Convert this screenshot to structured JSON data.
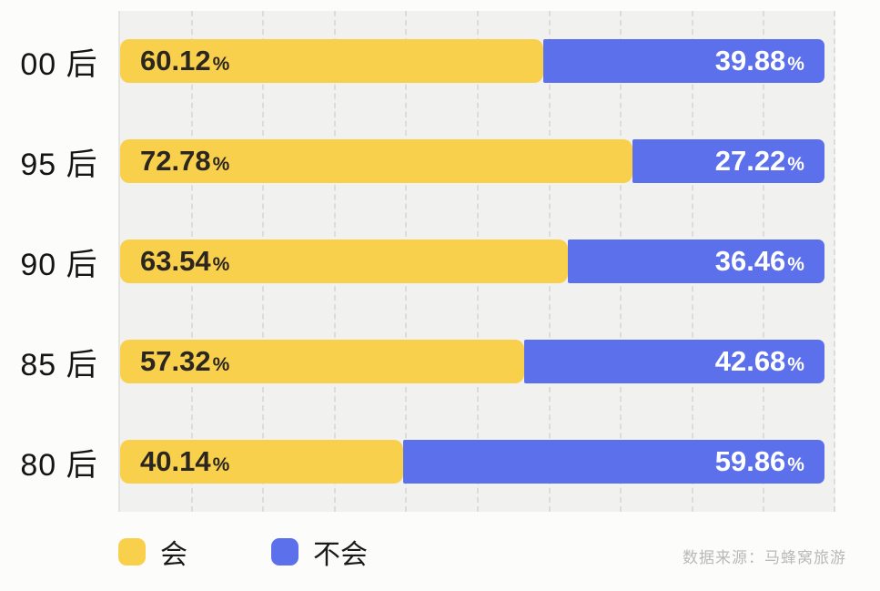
{
  "chart_data": {
    "type": "bar",
    "orientation": "horizontal",
    "stacked": true,
    "title": "",
    "xlabel": "",
    "ylabel": "",
    "xlim": [
      0,
      100
    ],
    "grid": "vertical dashed lines every 10%",
    "unit": "%",
    "percent_sign": "%",
    "categories": [
      "00 后",
      "95 后",
      "90 后",
      "85 后",
      "80 后"
    ],
    "series": [
      {
        "name": "会",
        "color": "#F9D04C",
        "values": [
          60.12,
          72.78,
          63.54,
          57.32,
          40.14
        ]
      },
      {
        "name": "不会",
        "color": "#5B70EA",
        "values": [
          39.88,
          27.22,
          36.46,
          42.68,
          59.86
        ]
      }
    ],
    "rows": [
      {
        "label": "00 后",
        "yes": "60.12",
        "no": "39.88"
      },
      {
        "label": "95 后",
        "yes": "72.78",
        "no": "27.22"
      },
      {
        "label": "90 后",
        "yes": "63.54",
        "no": "36.46"
      },
      {
        "label": "85 后",
        "yes": "57.32",
        "no": "42.68"
      },
      {
        "label": "80 后",
        "yes": "40.14",
        "no": "59.86"
      }
    ],
    "legend": [
      {
        "label": "会",
        "color": "#F9D04C"
      },
      {
        "label": "不会",
        "color": "#5B70EA"
      }
    ],
    "legend_position": "bottom-left",
    "source": "数据来源：马蜂窝旅游"
  },
  "colors": {
    "yes_bar": "#F9D04C",
    "no_bar": "#5B70EA",
    "panel_background": "#F1F1EF",
    "gridline": "#DCDCDA",
    "value_on_yes": "#2B2620",
    "value_on_no": "#FFFFFF",
    "category_text": "#141414",
    "source_text": "#B9B9B6"
  }
}
